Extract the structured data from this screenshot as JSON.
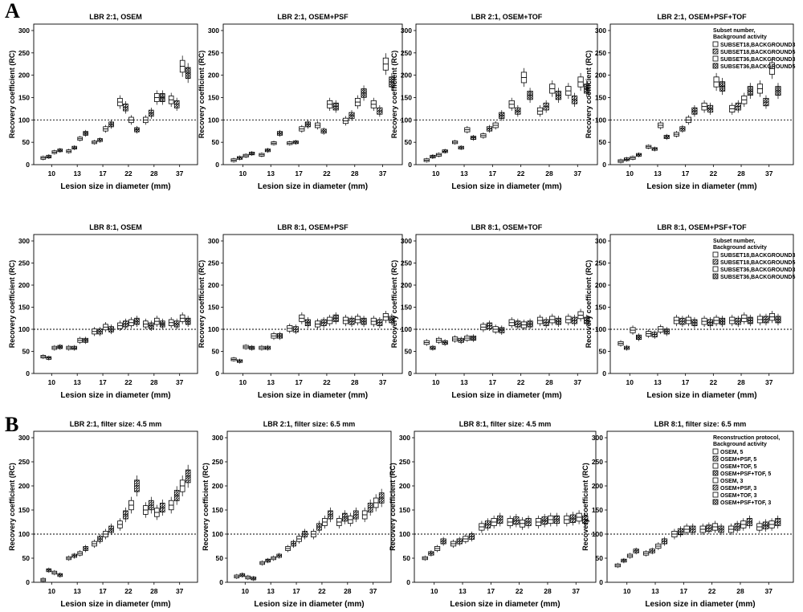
{
  "figure": {
    "panel_labels": [
      "A",
      "B"
    ]
  },
  "styles": {
    "B1": {
      "color": "#000000",
      "fill": "none"
    },
    "B2": {
      "color": "#000000",
      "fill": "hatch"
    },
    "B3": {
      "color": "#000000",
      "fill": "none"
    },
    "B4": {
      "color": "#000000",
      "fill": "cross"
    }
  },
  "chart_data": [
    {
      "type": "box",
      "title": "LBR 2:1, OSEM",
      "xlabel": "Lesion size in diameter (mm)",
      "ylabel": "Recovery coefficient (RC)",
      "categories": [
        "10",
        "13",
        "17",
        "22",
        "28",
        "37"
      ],
      "ylim": [
        0,
        300
      ],
      "yticks": [
        0,
        50,
        100,
        150,
        200,
        250,
        300
      ],
      "reference_line": 100,
      "legend": null,
      "series": [
        {
          "style": "B1",
          "values": [
            15,
            30,
            50,
            140,
            100,
            145
          ]
        },
        {
          "style": "B2",
          "values": [
            18,
            38,
            55,
            128,
            115,
            135
          ]
        },
        {
          "style": "B3",
          "values": [
            28,
            58,
            80,
            100,
            150,
            220
          ]
        },
        {
          "style": "B4",
          "values": [
            32,
            70,
            90,
            78,
            150,
            205
          ]
        }
      ]
    },
    {
      "type": "box",
      "title": "LBR 2:1, OSEM+PSF",
      "xlabel": "Lesion size in diameter (mm)",
      "ylabel": "Recovery coefficient (RC)",
      "categories": [
        "10",
        "13",
        "17",
        "22",
        "28",
        "37"
      ],
      "ylim": [
        0,
        300
      ],
      "yticks": [
        0,
        50,
        100,
        150,
        200,
        250,
        300
      ],
      "reference_line": 100,
      "legend": null,
      "series": [
        {
          "style": "B1",
          "values": [
            10,
            22,
            48,
            88,
            98,
            135
          ]
        },
        {
          "style": "B2",
          "values": [
            15,
            32,
            50,
            75,
            110,
            120
          ]
        },
        {
          "style": "B3",
          "values": [
            20,
            48,
            80,
            135,
            140,
            225
          ]
        },
        {
          "style": "B4",
          "values": [
            25,
            70,
            90,
            130,
            160,
            185
          ]
        }
      ]
    },
    {
      "type": "box",
      "title": "LBR 2:1, OSEM+TOF",
      "xlabel": "Lesion size in diameter (mm)",
      "ylabel": "Recovery coefficient (RC)",
      "categories": [
        "10",
        "13",
        "17",
        "22",
        "28",
        "37"
      ],
      "ylim": [
        0,
        300
      ],
      "yticks": [
        0,
        50,
        100,
        150,
        200,
        250,
        300
      ],
      "reference_line": 100,
      "legend": null,
      "series": [
        {
          "style": "B1",
          "values": [
            10,
            50,
            65,
            135,
            120,
            165
          ]
        },
        {
          "style": "B2",
          "values": [
            18,
            38,
            80,
            120,
            130,
            145
          ]
        },
        {
          "style": "B3",
          "values": [
            22,
            78,
            88,
            195,
            170,
            185
          ]
        },
        {
          "style": "B4",
          "values": [
            30,
            60,
            110,
            155,
            155,
            170
          ]
        }
      ]
    },
    {
      "type": "box",
      "title": "LBR 2:1, OSEM+PSF+TOF",
      "xlabel": "Lesion size in diameter (mm)",
      "ylabel": "Recovery coefficient (RC)",
      "categories": [
        "10",
        "13",
        "17",
        "22",
        "28",
        "37"
      ],
      "ylim": [
        0,
        300
      ],
      "yticks": [
        0,
        50,
        100,
        150,
        200,
        250,
        300
      ],
      "reference_line": 100,
      "legend": {
        "title": [
          "Subset number,",
          "Background activity"
        ],
        "entries": [
          {
            "label": "SUBSET18,BACKGROUND3",
            "style": "B1"
          },
          {
            "label": "SUBSET18,BACKGROUND5",
            "style": "B2"
          },
          {
            "label": "SUBSET36,BACKGROUND3",
            "style": "B3"
          },
          {
            "label": "SUBSET36,BACKGROUND5",
            "style": "B4"
          }
        ]
      },
      "series": [
        {
          "style": "B1",
          "values": [
            8,
            40,
            68,
            130,
            125,
            170
          ]
        },
        {
          "style": "B2",
          "values": [
            12,
            35,
            80,
            125,
            130,
            140
          ]
        },
        {
          "style": "B3",
          "values": [
            15,
            88,
            100,
            185,
            145,
            215
          ]
        },
        {
          "style": "B4",
          "values": [
            22,
            62,
            120,
            175,
            165,
            165
          ]
        }
      ]
    },
    {
      "type": "box",
      "title": "LBR 8:1, OSEM",
      "xlabel": "Lesion size in diameter (mm)",
      "ylabel": "Recovery coefficient (RC)",
      "categories": [
        "10",
        "13",
        "17",
        "22",
        "28",
        "37"
      ],
      "ylim": [
        0,
        300
      ],
      "yticks": [
        0,
        50,
        100,
        150,
        200,
        250,
        300
      ],
      "reference_line": 100,
      "legend": null,
      "series": [
        {
          "style": "B1",
          "values": [
            38,
            58,
            95,
            108,
            112,
            115
          ]
        },
        {
          "style": "B2",
          "values": [
            35,
            58,
            95,
            112,
            108,
            112
          ]
        },
        {
          "style": "B3",
          "values": [
            58,
            75,
            105,
            115,
            118,
            125
          ]
        },
        {
          "style": "B4",
          "values": [
            60,
            75,
            100,
            118,
            112,
            118
          ]
        }
      ]
    },
    {
      "type": "box",
      "title": "LBR 8:1, OSEM+PSF",
      "xlabel": "Lesion size in diameter (mm)",
      "ylabel": "Recovery coefficient (RC)",
      "categories": [
        "10",
        "13",
        "17",
        "22",
        "28",
        "37"
      ],
      "ylim": [
        0,
        300
      ],
      "yticks": [
        0,
        50,
        100,
        150,
        200,
        250,
        300
      ],
      "reference_line": 100,
      "legend": null,
      "series": [
        {
          "style": "B1",
          "values": [
            32,
            58,
            102,
            112,
            120,
            118
          ]
        },
        {
          "style": "B2",
          "values": [
            28,
            58,
            100,
            115,
            118,
            115
          ]
        },
        {
          "style": "B3",
          "values": [
            60,
            85,
            125,
            120,
            122,
            128
          ]
        },
        {
          "style": "B4",
          "values": [
            58,
            85,
            115,
            125,
            118,
            122
          ]
        }
      ]
    },
    {
      "type": "box",
      "title": "LBR 8:1, OSEM+TOF",
      "xlabel": "Lesion size in diameter (mm)",
      "ylabel": "Recovery coefficient (RC)",
      "categories": [
        "10",
        "13",
        "17",
        "22",
        "28",
        "37"
      ],
      "ylim": [
        0,
        300
      ],
      "yticks": [
        0,
        50,
        100,
        150,
        200,
        250,
        300
      ],
      "reference_line": 100,
      "legend": null,
      "series": [
        {
          "style": "B1",
          "values": [
            70,
            78,
            105,
            115,
            120,
            122
          ]
        },
        {
          "style": "B2",
          "values": [
            58,
            75,
            108,
            112,
            115,
            120
          ]
        },
        {
          "style": "B3",
          "values": [
            75,
            80,
            100,
            110,
            122,
            132
          ]
        },
        {
          "style": "B4",
          "values": [
            70,
            80,
            98,
            112,
            118,
            120
          ]
        }
      ]
    },
    {
      "type": "box",
      "title": "LBR 8:1, OSEM+PSF+TOF",
      "xlabel": "Lesion size in diameter (mm)",
      "ylabel": "Recovery coefficient (RC)",
      "categories": [
        "10",
        "13",
        "17",
        "22",
        "28",
        "37"
      ],
      "ylim": [
        0,
        300
      ],
      "yticks": [
        0,
        50,
        100,
        150,
        200,
        250,
        300
      ],
      "reference_line": 100,
      "legend": {
        "title": [
          "Subset number,",
          "Background activity"
        ],
        "entries": [
          {
            "label": "SUBSET18,BACKGROUND3",
            "style": "B1"
          },
          {
            "label": "SUBSET18,BACKGROUND5",
            "style": "B2"
          },
          {
            "label": "SUBSET36,BACKGROUND3",
            "style": "B3"
          },
          {
            "label": "SUBSET36,BACKGROUND5",
            "style": "B4"
          }
        ]
      },
      "series": [
        {
          "style": "B1",
          "values": [
            68,
            90,
            120,
            118,
            120,
            122
          ]
        },
        {
          "style": "B2",
          "values": [
            58,
            88,
            118,
            115,
            118,
            122
          ]
        },
        {
          "style": "B3",
          "values": [
            98,
            100,
            120,
            120,
            125,
            128
          ]
        },
        {
          "style": "B4",
          "values": [
            82,
            95,
            115,
            118,
            120,
            122
          ]
        }
      ]
    },
    {
      "type": "box",
      "title": "LBR 2:1, filter size: 4.5 mm",
      "xlabel": "Lesion size in diameter (mm)",
      "ylabel": "Recovery coefficient (RC)",
      "categories": [
        "10",
        "13",
        "17",
        "22",
        "28",
        "37"
      ],
      "ylim": [
        0,
        300
      ],
      "yticks": [
        0,
        50,
        100,
        150,
        200,
        250,
        300
      ],
      "reference_line": 100,
      "legend": null,
      "series": [
        {
          "style": "B1",
          "values": [
            5,
            50,
            80,
            120,
            150,
            160
          ]
        },
        {
          "style": "B2",
          "values": [
            25,
            55,
            90,
            140,
            160,
            180
          ]
        },
        {
          "style": "B1",
          "values": [
            20,
            60,
            100,
            160,
            145,
            200
          ]
        },
        {
          "style": "B2",
          "values": [
            15,
            70,
            110,
            200,
            155,
            220
          ]
        }
      ]
    },
    {
      "type": "box",
      "title": "LBR 2:1, filter size: 6.5 mm",
      "xlabel": "Lesion size in diameter (mm)",
      "ylabel": "Recovery coefficient (RC)",
      "categories": [
        "10",
        "13",
        "17",
        "22",
        "28",
        "37"
      ],
      "ylim": [
        0,
        300
      ],
      "yticks": [
        0,
        50,
        100,
        150,
        200,
        250,
        300
      ],
      "reference_line": 100,
      "legend": null,
      "series": [
        {
          "style": "B1",
          "values": [
            12,
            40,
            70,
            100,
            125,
            140
          ]
        },
        {
          "style": "B2",
          "values": [
            15,
            45,
            80,
            115,
            135,
            155
          ]
        },
        {
          "style": "B1",
          "values": [
            10,
            50,
            90,
            125,
            130,
            165
          ]
        },
        {
          "style": "B2",
          "values": [
            8,
            55,
            100,
            140,
            140,
            175
          ]
        }
      ]
    },
    {
      "type": "box",
      "title": "LBR 8:1, filter size: 4.5 mm",
      "xlabel": "Lesion size in diameter (mm)",
      "ylabel": "Recovery coefficient (RC)",
      "categories": [
        "10",
        "13",
        "17",
        "22",
        "28",
        "37"
      ],
      "ylim": [
        0,
        300
      ],
      "yticks": [
        0,
        50,
        100,
        150,
        200,
        250,
        300
      ],
      "reference_line": 100,
      "legend": null,
      "series": [
        {
          "style": "B1",
          "values": [
            50,
            80,
            115,
            125,
            125,
            130
          ]
        },
        {
          "style": "B2",
          "values": [
            60,
            85,
            120,
            128,
            128,
            132
          ]
        },
        {
          "style": "B1",
          "values": [
            70,
            90,
            125,
            122,
            130,
            135
          ]
        },
        {
          "style": "B2",
          "values": [
            85,
            95,
            130,
            125,
            130,
            130
          ]
        }
      ]
    },
    {
      "type": "box",
      "title": "LBR 8:1, filter size: 6.5 mm",
      "xlabel": "Lesion size in diameter (mm)",
      "ylabel": "Recovery coefficient (RC)",
      "categories": [
        "10",
        "13",
        "17",
        "22",
        "28",
        "37"
      ],
      "ylim": [
        0,
        300
      ],
      "yticks": [
        0,
        50,
        100,
        150,
        200,
        250,
        300
      ],
      "reference_line": 100,
      "legend": {
        "title": [
          "Reconstruction protocol,",
          "Background activity"
        ],
        "entries": [
          {
            "label": "OSEM, 5",
            "style": "B1"
          },
          {
            "label": "OSEM+PSF, 5",
            "style": "B2"
          },
          {
            "label": "OSEM+TOF, 5",
            "style": "B3"
          },
          {
            "label": "OSEM+PSF+TOF, 5",
            "style": "B4"
          },
          {
            "label": "OSEM, 3",
            "style": "B1"
          },
          {
            "label": "OSEM+PSF, 3",
            "style": "B2"
          },
          {
            "label": "OSEM+TOF, 3",
            "style": "B3"
          },
          {
            "label": "OSEM+PSF+TOF, 3",
            "style": "B4"
          }
        ]
      },
      "series": [
        {
          "style": "B1",
          "values": [
            35,
            60,
            100,
            110,
            110,
            115
          ]
        },
        {
          "style": "B2",
          "values": [
            45,
            65,
            105,
            112,
            115,
            118
          ]
        },
        {
          "style": "B1",
          "values": [
            55,
            75,
            110,
            115,
            120,
            120
          ]
        },
        {
          "style": "B2",
          "values": [
            65,
            85,
            110,
            110,
            125,
            125
          ]
        }
      ]
    }
  ]
}
